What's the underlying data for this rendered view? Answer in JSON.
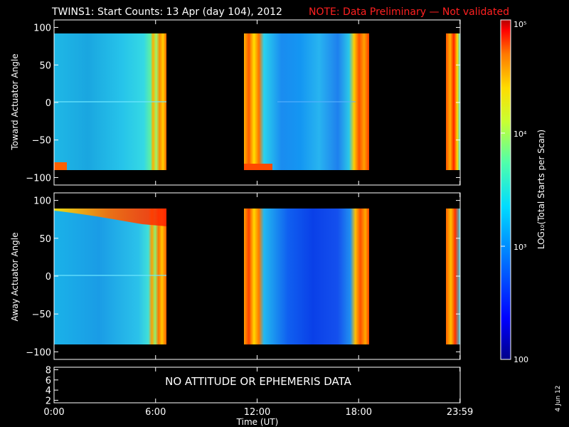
{
  "title": {
    "main": "TWINS1: Start Counts: 13 Apr (day 104), 2012",
    "note": "NOTE: Data Preliminary — Not validated"
  },
  "chart_data": [
    {
      "type": "heatmap",
      "ylabel": "Toward Actuator Angle",
      "ylim": [
        -110,
        110
      ],
      "yticks": [
        "100",
        "50",
        "0",
        "−50",
        "−100"
      ],
      "data_ylim": [
        -90,
        90
      ],
      "xlim_hours": [
        0,
        24
      ],
      "data_blocks_hours": [
        [
          0,
          6.55
        ],
        [
          11.2,
          18.65
        ],
        [
          22.7,
          24
        ]
      ],
      "colorscale": "log10",
      "description_of_values": "mostly ~10^3 (cyan/light blue) with bands near 10^5 (red/orange) at block edges; ~12:00-18:00 lower (~300, blue)"
    },
    {
      "type": "heatmap",
      "ylabel": "Away Actuator Angle",
      "ylim": [
        -110,
        110
      ],
      "yticks": [
        "100",
        "50",
        "0",
        "−50",
        "−100"
      ],
      "data_ylim": [
        -90,
        90
      ],
      "xlim_hours": [
        0,
        24
      ],
      "data_blocks_hours": [
        [
          0,
          6.55
        ],
        [
          11.2,
          18.65
        ],
        [
          22.7,
          24
        ]
      ],
      "colorscale": "log10",
      "description_of_values": "mostly ~10^3 with high-count arc near 80-90 deg in first block; second block 12:00-18:00 lower (~200-300)"
    },
    {
      "type": "line",
      "yticks": [
        "8",
        "6",
        "4",
        "2"
      ],
      "ylim": [
        1.5,
        8.5
      ],
      "message": "NO ATTITUDE OR EPHEMERIS DATA"
    }
  ],
  "xaxis": {
    "ticks": [
      "0:00",
      "6:00",
      "12:00",
      "18:00",
      "23:59"
    ],
    "tick_hours": [
      0,
      6,
      12,
      18,
      23.983
    ],
    "label": "Time (UT)"
  },
  "colorbar": {
    "label": "LOG₁₀(Total Starts per Scan)",
    "ticks": [
      "10⁵",
      "10⁴",
      "10³",
      "100"
    ],
    "tick_log": [
      5,
      4,
      3,
      2
    ],
    "range_log": [
      2,
      5
    ],
    "colors": [
      "#000088",
      "#0000ff",
      "#0078ff",
      "#00dcff",
      "#50ffaa",
      "#c8ff32",
      "#ffdc00",
      "#ff7800",
      "#ff0000",
      "#b40000"
    ]
  },
  "stamp": "4 Jun 12"
}
